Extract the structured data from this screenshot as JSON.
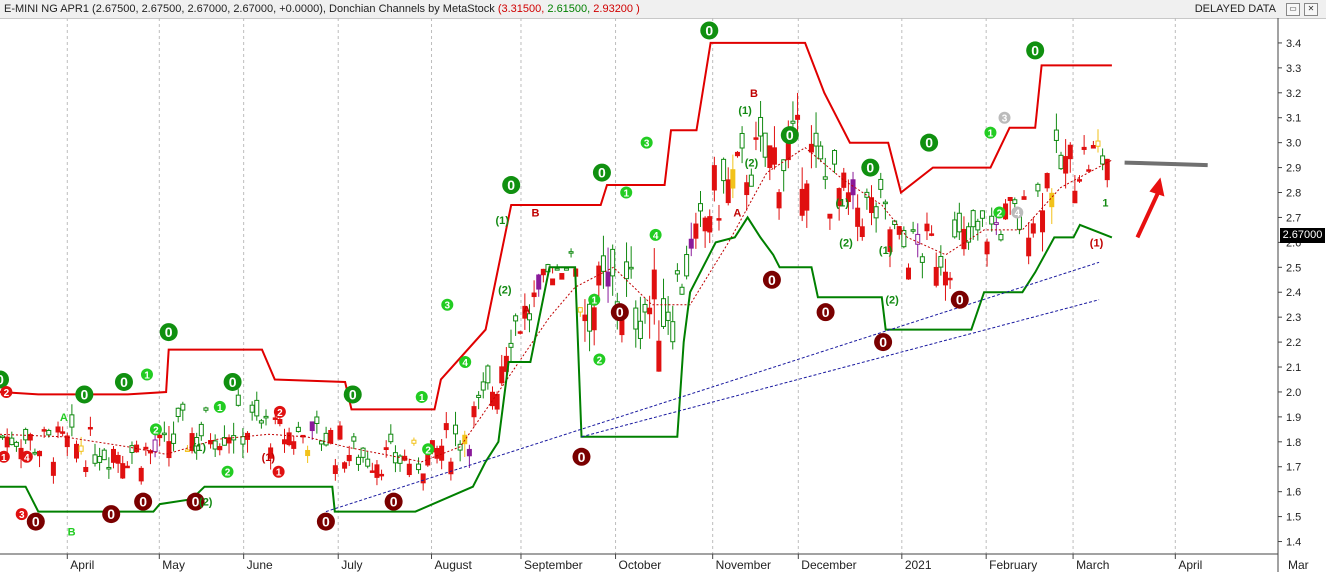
{
  "header": {
    "symbol": "E-MINI NG APR1",
    "ohlc": "(2.67500, 2.67500, 2.67000, 2.67000, +0.0000),",
    "indicator": "Donchian Channels by MetaStock",
    "dc_upper": "3.31500,",
    "dc_lower": "2.61500,",
    "dc_mid": "2.93200",
    "dc_open": "(",
    "dc_close": ")",
    "status": "DELAYED DATA",
    "btn_restore": "▭",
    "btn_close": "✕"
  },
  "last_price": "2.67000",
  "colors": {
    "upper": "#e00000",
    "lower": "#008000",
    "mid": "#c00000",
    "trend": "#1a1aa0",
    "bull": "#128a12",
    "bear": "#e01010",
    "arrow": "#e81010",
    "horizontal": "#707070",
    "zero_green": "#109010",
    "zero_red": "#7a0000"
  },
  "chart_data": {
    "type": "candlestick",
    "ylim": [
      1.35,
      3.5
    ],
    "y_ticks": [
      "1.4",
      "1.5",
      "1.6",
      "1.7",
      "1.8",
      "1.9",
      "2.0",
      "2.1",
      "2.2",
      "2.3",
      "2.4",
      "2.5",
      "2.6",
      "2.7",
      "2.8",
      "2.9",
      "3.0",
      "3.1",
      "3.2",
      "3.3",
      "3.4"
    ],
    "x_labels": [
      {
        "text": "April",
        "x": 0.055
      },
      {
        "text": "May",
        "x": 0.127
      },
      {
        "text": "June",
        "x": 0.193
      },
      {
        "text": "July",
        "x": 0.267
      },
      {
        "text": "August",
        "x": 0.34
      },
      {
        "text": "September",
        "x": 0.41
      },
      {
        "text": "October",
        "x": 0.484
      },
      {
        "text": "November",
        "x": 0.56
      },
      {
        "text": "December",
        "x": 0.627
      },
      {
        "text": "2021",
        "x": 0.708
      },
      {
        "text": "February",
        "x": 0.774
      },
      {
        "text": "March",
        "x": 0.842
      },
      {
        "text": "April",
        "x": 0.922
      }
    ],
    "x_label_mar": "Mar",
    "donchian_upper": [
      [
        0,
        2.0
      ],
      [
        0.03,
        1.99
      ],
      [
        0.1,
        1.99
      ],
      [
        0.13,
        2.0
      ],
      [
        0.132,
        2.17
      ],
      [
        0.205,
        2.17
      ],
      [
        0.215,
        2.05
      ],
      [
        0.27,
        2.04
      ],
      [
        0.275,
        1.93
      ],
      [
        0.34,
        1.93
      ],
      [
        0.345,
        2.05
      ],
      [
        0.38,
        2.25
      ],
      [
        0.39,
        2.5
      ],
      [
        0.4,
        2.75
      ],
      [
        0.47,
        2.75
      ],
      [
        0.475,
        2.83
      ],
      [
        0.52,
        2.83
      ],
      [
        0.525,
        3.05
      ],
      [
        0.545,
        3.05
      ],
      [
        0.556,
        3.4
      ],
      [
        0.63,
        3.4
      ],
      [
        0.645,
        3.2
      ],
      [
        0.665,
        3.0
      ],
      [
        0.695,
        3.0
      ],
      [
        0.705,
        2.8
      ],
      [
        0.73,
        2.9
      ],
      [
        0.775,
        2.9
      ],
      [
        0.79,
        3.06
      ],
      [
        0.81,
        3.06
      ],
      [
        0.815,
        3.31
      ],
      [
        0.87,
        3.31
      ]
    ],
    "donchian_lower": [
      [
        0,
        1.62
      ],
      [
        0.02,
        1.62
      ],
      [
        0.03,
        1.52
      ],
      [
        0.12,
        1.52
      ],
      [
        0.125,
        1.55
      ],
      [
        0.15,
        1.57
      ],
      [
        0.16,
        1.62
      ],
      [
        0.26,
        1.62
      ],
      [
        0.262,
        1.52
      ],
      [
        0.325,
        1.52
      ],
      [
        0.37,
        1.62
      ],
      [
        0.38,
        1.72
      ],
      [
        0.39,
        1.8
      ],
      [
        0.398,
        2.12
      ],
      [
        0.415,
        2.12
      ],
      [
        0.43,
        2.5
      ],
      [
        0.45,
        2.5
      ],
      [
        0.455,
        1.82
      ],
      [
        0.475,
        1.82
      ],
      [
        0.53,
        1.82
      ],
      [
        0.535,
        2.2
      ],
      [
        0.54,
        2.4
      ],
      [
        0.56,
        2.6
      ],
      [
        0.575,
        2.62
      ],
      [
        0.585,
        2.7
      ],
      [
        0.595,
        2.62
      ],
      [
        0.605,
        2.55
      ],
      [
        0.61,
        2.5
      ],
      [
        0.635,
        2.5
      ],
      [
        0.64,
        2.38
      ],
      [
        0.69,
        2.38
      ],
      [
        0.693,
        2.25
      ],
      [
        0.76,
        2.25
      ],
      [
        0.77,
        2.4
      ],
      [
        0.8,
        2.4
      ],
      [
        0.81,
        2.48
      ],
      [
        0.825,
        2.62
      ],
      [
        0.84,
        2.62
      ],
      [
        0.845,
        2.67
      ],
      [
        0.87,
        2.62
      ]
    ],
    "donchian_mid": [
      [
        0,
        1.83
      ],
      [
        0.05,
        1.82
      ],
      [
        0.1,
        1.78
      ],
      [
        0.13,
        1.75
      ],
      [
        0.17,
        1.81
      ],
      [
        0.21,
        1.83
      ],
      [
        0.24,
        1.82
      ],
      [
        0.27,
        1.78
      ],
      [
        0.3,
        1.75
      ],
      [
        0.33,
        1.72
      ],
      [
        0.36,
        1.78
      ],
      [
        0.39,
        2.0
      ],
      [
        0.43,
        2.3
      ],
      [
        0.45,
        2.42
      ],
      [
        0.48,
        2.5
      ],
      [
        0.51,
        2.35
      ],
      [
        0.54,
        2.35
      ],
      [
        0.57,
        2.6
      ],
      [
        0.6,
        2.88
      ],
      [
        0.63,
        2.98
      ],
      [
        0.66,
        2.85
      ],
      [
        0.69,
        2.75
      ],
      [
        0.71,
        2.62
      ],
      [
        0.74,
        2.55
      ],
      [
        0.77,
        2.65
      ],
      [
        0.8,
        2.65
      ],
      [
        0.83,
        2.82
      ],
      [
        0.87,
        2.93
      ]
    ],
    "trend_line_1": [
      [
        0.255,
        1.52
      ],
      [
        0.86,
        2.52
      ]
    ],
    "trend_line_2": [
      [
        0.455,
        1.82
      ],
      [
        0.86,
        2.37
      ]
    ],
    "horizontal_line": [
      [
        0.88,
        2.92
      ],
      [
        0.945,
        2.91
      ]
    ],
    "annotations": [
      {
        "text": "0",
        "x": 0.0,
        "y": 2.05,
        "kind": "zero_green"
      },
      {
        "text": "0",
        "x": 0.066,
        "y": 1.99,
        "kind": "zero_green"
      },
      {
        "text": "0",
        "x": 0.097,
        "y": 2.04,
        "kind": "zero_green"
      },
      {
        "text": "0",
        "x": 0.132,
        "y": 2.24,
        "kind": "zero_green"
      },
      {
        "text": "0",
        "x": 0.182,
        "y": 2.04,
        "kind": "zero_green"
      },
      {
        "text": "0",
        "x": 0.276,
        "y": 1.99,
        "kind": "zero_green"
      },
      {
        "text": "0",
        "x": 0.4,
        "y": 2.83,
        "kind": "zero_green"
      },
      {
        "text": "0",
        "x": 0.471,
        "y": 2.88,
        "kind": "zero_green"
      },
      {
        "text": "0",
        "x": 0.555,
        "y": 3.45,
        "kind": "zero_green"
      },
      {
        "text": "0",
        "x": 0.618,
        "y": 3.03,
        "kind": "zero_green"
      },
      {
        "text": "0",
        "x": 0.681,
        "y": 2.9,
        "kind": "zero_green"
      },
      {
        "text": "0",
        "x": 0.727,
        "y": 3.0,
        "kind": "zero_green"
      },
      {
        "text": "0",
        "x": 0.81,
        "y": 3.37,
        "kind": "zero_green"
      },
      {
        "text": "0",
        "x": 0.028,
        "y": 1.48,
        "kind": "zero_red"
      },
      {
        "text": "0",
        "x": 0.087,
        "y": 1.51,
        "kind": "zero_red"
      },
      {
        "text": "0",
        "x": 0.112,
        "y": 1.56,
        "kind": "zero_red"
      },
      {
        "text": "0",
        "x": 0.153,
        "y": 1.56,
        "kind": "zero_red"
      },
      {
        "text": "0",
        "x": 0.255,
        "y": 1.48,
        "kind": "zero_red"
      },
      {
        "text": "0",
        "x": 0.308,
        "y": 1.56,
        "kind": "zero_red"
      },
      {
        "text": "0",
        "x": 0.455,
        "y": 1.74,
        "kind": "zero_red"
      },
      {
        "text": "0",
        "x": 0.485,
        "y": 2.32,
        "kind": "zero_red"
      },
      {
        "text": "0",
        "x": 0.604,
        "y": 2.45,
        "kind": "zero_red"
      },
      {
        "text": "0",
        "x": 0.646,
        "y": 2.32,
        "kind": "zero_red"
      },
      {
        "text": "0",
        "x": 0.691,
        "y": 2.2,
        "kind": "zero_red"
      },
      {
        "text": "0",
        "x": 0.751,
        "y": 2.37,
        "kind": "zero_red"
      },
      {
        "text": "A",
        "x": 0.05,
        "y": 1.9,
        "kind": "label_green"
      },
      {
        "text": "B",
        "x": 0.056,
        "y": 1.44,
        "kind": "label_green"
      },
      {
        "text": "B",
        "x": 0.419,
        "y": 2.72,
        "kind": "label_red"
      },
      {
        "text": "A",
        "x": 0.412,
        "y": 2.33,
        "kind": "label_red"
      },
      {
        "text": "B",
        "x": 0.59,
        "y": 3.2,
        "kind": "label_red"
      },
      {
        "text": "A",
        "x": 0.577,
        "y": 2.72,
        "kind": "label_red"
      },
      {
        "text": "3",
        "x": 0.35,
        "y": 2.35,
        "kind": "num_green"
      },
      {
        "text": "4",
        "x": 0.364,
        "y": 2.12,
        "kind": "num_green"
      },
      {
        "text": "1",
        "x": 0.33,
        "y": 1.98,
        "kind": "num_green"
      },
      {
        "text": "2",
        "x": 0.335,
        "y": 1.77,
        "kind": "num_green"
      },
      {
        "text": "3",
        "x": 0.506,
        "y": 3.0,
        "kind": "num_green"
      },
      {
        "text": "1",
        "x": 0.49,
        "y": 2.8,
        "kind": "num_green"
      },
      {
        "text": "4",
        "x": 0.513,
        "y": 2.63,
        "kind": "num_green"
      },
      {
        "text": "1",
        "x": 0.465,
        "y": 2.37,
        "kind": "num_green"
      },
      {
        "text": "2",
        "x": 0.469,
        "y": 2.13,
        "kind": "num_green"
      },
      {
        "text": "1",
        "x": 0.775,
        "y": 3.04,
        "kind": "num_green"
      },
      {
        "text": "2",
        "x": 0.782,
        "y": 2.72,
        "kind": "num_green"
      },
      {
        "text": "3",
        "x": 0.786,
        "y": 3.1,
        "kind": "num_grey"
      },
      {
        "text": "4",
        "x": 0.796,
        "y": 2.72,
        "kind": "num_grey"
      },
      {
        "text": "1",
        "x": 0.115,
        "y": 2.07,
        "kind": "num_green"
      },
      {
        "text": "2",
        "x": 0.122,
        "y": 1.85,
        "kind": "num_green"
      },
      {
        "text": "1",
        "x": 0.172,
        "y": 1.94,
        "kind": "num_green"
      },
      {
        "text": "2",
        "x": 0.178,
        "y": 1.68,
        "kind": "num_green"
      },
      {
        "text": "2",
        "x": 0.005,
        "y": 2.0,
        "kind": "num_red"
      },
      {
        "text": "1",
        "x": 0.003,
        "y": 1.74,
        "kind": "num_red"
      },
      {
        "text": "4",
        "x": 0.021,
        "y": 1.74,
        "kind": "num_red"
      },
      {
        "text": "3",
        "x": 0.017,
        "y": 1.51,
        "kind": "num_red"
      },
      {
        "text": "2",
        "x": 0.219,
        "y": 1.92,
        "kind": "num_red"
      },
      {
        "text": "1",
        "x": 0.218,
        "y": 1.68,
        "kind": "num_red"
      },
      {
        "text": "(1)",
        "x": 0.393,
        "y": 2.69,
        "kind": "paren_green"
      },
      {
        "text": "(2)",
        "x": 0.395,
        "y": 2.41,
        "kind": "paren_green"
      },
      {
        "text": "(1)",
        "x": 0.583,
        "y": 3.13,
        "kind": "paren_green"
      },
      {
        "text": "(2)",
        "x": 0.588,
        "y": 2.92,
        "kind": "paren_green"
      },
      {
        "text": "(1)",
        "x": 0.659,
        "y": 2.76,
        "kind": "paren_green"
      },
      {
        "text": "(2)",
        "x": 0.662,
        "y": 2.6,
        "kind": "paren_green"
      },
      {
        "text": "(1)",
        "x": 0.693,
        "y": 2.57,
        "kind": "paren_green"
      },
      {
        "text": "(2)",
        "x": 0.698,
        "y": 2.37,
        "kind": "paren_green"
      },
      {
        "text": "(1)",
        "x": 0.156,
        "y": 1.78,
        "kind": "paren_green"
      },
      {
        "text": "(2)",
        "x": 0.161,
        "y": 1.56,
        "kind": "paren_green"
      },
      {
        "text": "(1)",
        "x": 0.21,
        "y": 1.74,
        "kind": "paren_red"
      },
      {
        "text": "(1)",
        "x": 0.858,
        "y": 2.6,
        "kind": "paren_red"
      },
      {
        "text": "1",
        "x": 0.865,
        "y": 2.76,
        "kind": "num_small_green"
      }
    ]
  }
}
